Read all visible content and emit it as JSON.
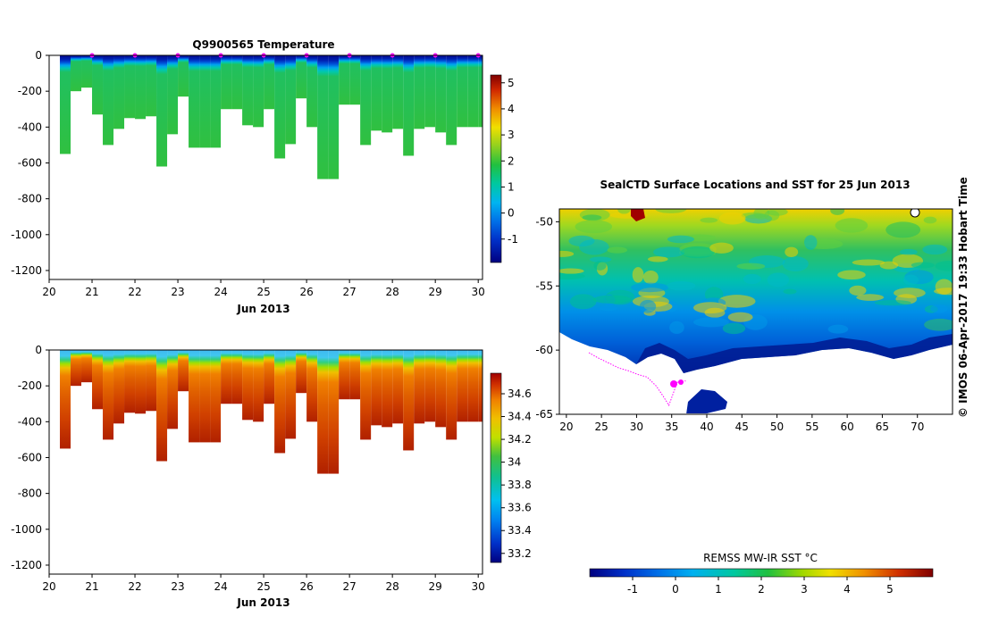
{
  "colors": {
    "axis": "#000000",
    "track": "#ff00ff",
    "background": "#ffffff"
  },
  "chart_data": [
    {
      "type": "heatmap",
      "title": "Q9900565  Temperature",
      "xlabel": "Jun 2013",
      "ylabel": "",
      "xlim": [
        20,
        30.1
      ],
      "ylim": [
        -1250,
        0
      ],
      "xticks": [
        20,
        21,
        22,
        23,
        24,
        25,
        26,
        27,
        28,
        29,
        30
      ],
      "yticks": [
        0,
        -200,
        -400,
        -600,
        -800,
        -1000,
        -1200
      ],
      "colorbar": {
        "min": -1.9,
        "max": 5.3,
        "ticks": [
          -1,
          0,
          1,
          2,
          3,
          4,
          5
        ]
      },
      "profile_markers_x": [
        21,
        22,
        23,
        24,
        25,
        26,
        27,
        28,
        29,
        30
      ],
      "profiles": [
        {
          "t": 20.25,
          "depth": 550
        },
        {
          "t": 20.5,
          "depth": 200
        },
        {
          "t": 20.75,
          "depth": 180
        },
        {
          "t": 21.0,
          "depth": 330
        },
        {
          "t": 21.25,
          "depth": 500
        },
        {
          "t": 21.5,
          "depth": 410
        },
        {
          "t": 21.75,
          "depth": 350
        },
        {
          "t": 22.0,
          "depth": 355
        },
        {
          "t": 22.25,
          "depth": 340
        },
        {
          "t": 22.5,
          "depth": 620
        },
        {
          "t": 22.75,
          "depth": 440
        },
        {
          "t": 23.0,
          "depth": 230
        },
        {
          "t": 23.25,
          "depth": 515
        },
        {
          "t": 23.5,
          "depth": 515
        },
        {
          "t": 23.75,
          "depth": 515
        },
        {
          "t": 24.0,
          "depth": 300
        },
        {
          "t": 24.25,
          "depth": 300
        },
        {
          "t": 24.5,
          "depth": 390
        },
        {
          "t": 24.75,
          "depth": 400
        },
        {
          "t": 25.0,
          "depth": 300
        },
        {
          "t": 25.25,
          "depth": 575
        },
        {
          "t": 25.5,
          "depth": 495
        },
        {
          "t": 25.75,
          "depth": 240
        },
        {
          "t": 26.0,
          "depth": 400
        },
        {
          "t": 26.25,
          "depth": 690
        },
        {
          "t": 26.5,
          "depth": 690
        },
        {
          "t": 26.75,
          "depth": 275
        },
        {
          "t": 27.0,
          "depth": 275
        },
        {
          "t": 27.25,
          "depth": 500
        },
        {
          "t": 27.5,
          "depth": 420
        },
        {
          "t": 27.75,
          "depth": 430
        },
        {
          "t": 28.0,
          "depth": 410
        },
        {
          "t": 28.25,
          "depth": 560
        },
        {
          "t": 28.5,
          "depth": 410
        },
        {
          "t": 28.75,
          "depth": 400
        },
        {
          "t": 29.0,
          "depth": 430
        },
        {
          "t": 29.25,
          "depth": 500
        },
        {
          "t": 29.5,
          "depth": 400
        },
        {
          "t": 29.75,
          "depth": 400
        },
        {
          "t": 30.0,
          "depth": 400
        }
      ],
      "profile_width_days": 0.25
    },
    {
      "type": "heatmap",
      "title": "",
      "xlabel": "Jun 2013",
      "ylabel": "",
      "xlim": [
        20,
        30.1
      ],
      "ylim": [
        -1250,
        0
      ],
      "xticks": [
        20,
        21,
        22,
        23,
        24,
        25,
        26,
        27,
        28,
        29,
        30
      ],
      "yticks": [
        0,
        -200,
        -400,
        -600,
        -800,
        -1000,
        -1200
      ],
      "colorbar": {
        "min": 33.12,
        "max": 34.78,
        "ticks": [
          33.2,
          33.4,
          33.6,
          33.8,
          34,
          34.2,
          34.4,
          34.6
        ]
      }
    },
    {
      "type": "heatmap",
      "title": "SealCTD Surface Locations and SST for 25 Jun 2013",
      "xlabel": "",
      "ylabel": "",
      "xlim": [
        19,
        75
      ],
      "ylim": [
        -65,
        -49
      ],
      "xticks": [
        20,
        25,
        30,
        35,
        40,
        45,
        50,
        55,
        60,
        65,
        70
      ],
      "yticks": [
        -50,
        -55,
        -60,
        -65
      ],
      "colorbar_label": "REMSS MW-IR SST °C",
      "colorbar": {
        "min": -2,
        "max": 6,
        "ticks": [
          -1,
          0,
          1,
          2,
          3,
          4,
          5
        ]
      },
      "track_lon": [
        23.2,
        24.5,
        26.0,
        27.5,
        28.8,
        30.2,
        31.5,
        32.8,
        33.8,
        34.6,
        35.8,
        37.0
      ],
      "track_lat": [
        -60.2,
        -60.6,
        -61.0,
        -61.4,
        -61.6,
        -61.9,
        -62.1,
        -62.8,
        -63.6,
        -64.3,
        -62.5,
        -62.4
      ]
    }
  ],
  "footer": {
    "credit": "© IMOS 06-Apr-2017 19:33 Hobart Time"
  }
}
